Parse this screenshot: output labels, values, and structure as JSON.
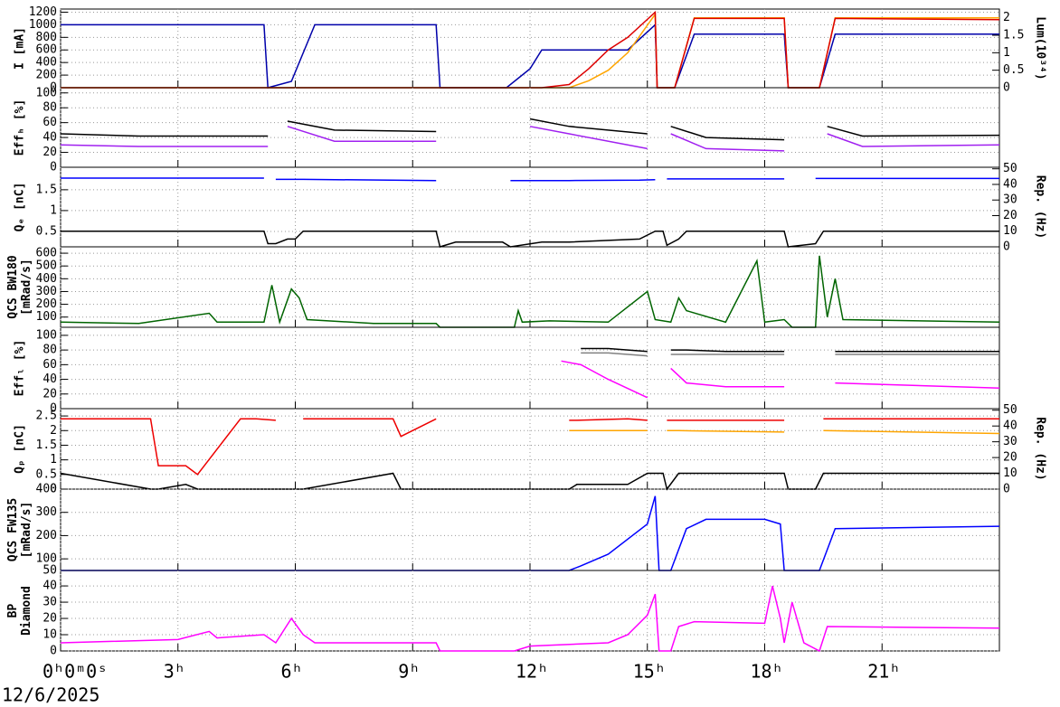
{
  "chart_data": [
    {
      "type": "line",
      "ylabel": [
        "I [mA]"
      ],
      "y2label": "Lum(10³⁴)",
      "xlim": [
        0,
        24
      ],
      "ylim": [
        0,
        1250
      ],
      "yticks": [
        0,
        200,
        400,
        600,
        800,
        1000,
        1200
      ],
      "y2lim": [
        0,
        2.25
      ],
      "y2ticks": [
        0,
        0.5,
        1,
        1.5,
        2
      ],
      "grid": true,
      "x": [
        0,
        5.2,
        5.3,
        5.9,
        6.5,
        9.6,
        9.7,
        11.4,
        12,
        12.3,
        13,
        13.5,
        14,
        14.5,
        15.2,
        15.25,
        15.7,
        16.2,
        18.5,
        18.6,
        19.4,
        19.8,
        24
      ],
      "series": [
        {
          "color": "#0000aa",
          "values": [
            1000,
            1000,
            0,
            100,
            1000,
            1000,
            0,
            0,
            300,
            600,
            600,
            600,
            600,
            600,
            1000,
            0,
            0,
            850,
            850,
            0,
            0,
            850,
            850
          ]
        },
        {
          "color": "#ffa500",
          "axis": "y2",
          "values": [
            0,
            0,
            0,
            0,
            0,
            0,
            0,
            0,
            0,
            0,
            0,
            0.2,
            0.5,
            1.0,
            2.1,
            0,
            0,
            2.0,
            2.0,
            0,
            0,
            2.0,
            2.0
          ]
        },
        {
          "color": "#dd0000",
          "values": [
            0,
            0,
            0,
            0,
            0,
            0,
            0,
            0,
            0,
            0,
            50,
            300,
            600,
            800,
            1200,
            0,
            0,
            1100,
            1100,
            0,
            0,
            1100,
            1080
          ]
        }
      ]
    },
    {
      "type": "line",
      "ylabel": [
        "Effₕ [%]"
      ],
      "xlim": [
        0,
        24
      ],
      "ylim": [
        0,
        107
      ],
      "yticks": [
        0,
        20,
        40,
        60,
        80,
        100
      ],
      "grid": true,
      "x": [
        0,
        2,
        5.3,
        5.5,
        5.8,
        7,
        9.6,
        9.8,
        11.6,
        12,
        13,
        15,
        15.4,
        15.6,
        16.5,
        18.5,
        18.7,
        19.3,
        19.6,
        20.5,
        24
      ],
      "series": [
        {
          "color": "#000000",
          "values": [
            45,
            42,
            42,
            null,
            62,
            50,
            48,
            null,
            null,
            65,
            55,
            45,
            null,
            55,
            40,
            37,
            null,
            null,
            55,
            42,
            43
          ]
        },
        {
          "color": "#a020f0",
          "values": [
            30,
            28,
            28,
            null,
            55,
            35,
            35,
            null,
            null,
            55,
            45,
            25,
            null,
            45,
            25,
            22,
            null,
            null,
            45,
            28,
            30
          ]
        }
      ]
    },
    {
      "type": "line",
      "ylabel": [
        "Qₑ [nC]"
      ],
      "y2label": "Rep. (Hz)",
      "xlim": [
        0,
        24
      ],
      "ylim": [
        0.13,
        2.04
      ],
      "yticks": [
        0.5,
        1,
        1.5
      ],
      "y2lim": [
        0,
        51
      ],
      "y2ticks": [
        0,
        10,
        20,
        30,
        40,
        50
      ],
      "grid": true,
      "x": [
        0,
        5.2,
        5.3,
        5.5,
        5.8,
        6.0,
        6.2,
        9.6,
        9.7,
        10.1,
        11.3,
        11.5,
        12.3,
        13,
        14.8,
        15.2,
        15.4,
        15.5,
        15.8,
        16,
        18.5,
        18.6,
        19.3,
        19.5,
        24
      ],
      "series": [
        {
          "color": "#0000ff",
          "values": [
            1.78,
            1.78,
            null,
            1.75,
            1.75,
            1.75,
            1.75,
            1.72,
            null,
            null,
            null,
            1.72,
            1.72,
            1.72,
            1.73,
            1.74,
            null,
            1.76,
            1.76,
            1.76,
            1.76,
            null,
            1.77,
            1.77,
            1.77
          ]
        },
        {
          "color": "#000000",
          "axis": "y2",
          "values": [
            10,
            10,
            2,
            2,
            5,
            5,
            10,
            10,
            0,
            3,
            3,
            0,
            3,
            3,
            5,
            10,
            10,
            1,
            5,
            10,
            10,
            0,
            2,
            10,
            10
          ]
        }
      ]
    },
    {
      "type": "line",
      "ylabel": [
        "QCS BW180",
        "[mRad/s]"
      ],
      "xlim": [
        0,
        24
      ],
      "ylim": [
        20,
        650
      ],
      "yticks": [
        100,
        200,
        300,
        400,
        500,
        600
      ],
      "grid": true,
      "x": [
        0,
        2,
        3.8,
        4,
        5.2,
        5.4,
        5.6,
        5.9,
        6.1,
        6.3,
        8,
        9.6,
        9.7,
        11.6,
        11.7,
        11.8,
        12.5,
        14,
        15,
        15.2,
        15.6,
        15.8,
        16,
        17,
        17.8,
        18,
        18.5,
        18.7,
        19.3,
        19.4,
        19.6,
        19.8,
        20,
        24
      ],
      "series": [
        {
          "color": "#006400",
          "values": [
            60,
            50,
            130,
            60,
            60,
            350,
            60,
            320,
            250,
            80,
            50,
            50,
            20,
            20,
            150,
            60,
            70,
            60,
            300,
            80,
            60,
            250,
            150,
            60,
            540,
            60,
            80,
            20,
            20,
            580,
            100,
            400,
            80,
            60
          ]
        }
      ]
    },
    {
      "type": "line",
      "ylabel": [
        "Effₗ [%]"
      ],
      "xlim": [
        0,
        24
      ],
      "ylim": [
        0,
        111
      ],
      "yticks": [
        0,
        20,
        40,
        60,
        80,
        100
      ],
      "grid": true,
      "x": [
        12.8,
        13.3,
        14,
        15,
        15.3,
        15.6,
        16,
        17,
        18.5,
        18.7,
        19.5,
        19.8,
        24
      ],
      "series": [
        {
          "color": "#000000",
          "values": [
            null,
            82,
            82,
            78,
            null,
            80,
            80,
            78,
            78,
            null,
            null,
            78,
            78
          ]
        },
        {
          "color": "#808080",
          "values": [
            null,
            76,
            76,
            72,
            null,
            74,
            74,
            74,
            74,
            null,
            null,
            74,
            74
          ]
        },
        {
          "color": "#ff00ff",
          "values": [
            65,
            60,
            40,
            15,
            null,
            55,
            35,
            30,
            30,
            null,
            null,
            35,
            28
          ]
        }
      ]
    },
    {
      "type": "line",
      "ylabel": [
        "Qₚ [nC]"
      ],
      "y2label": "Rep. (Hz)",
      "xlim": [
        0,
        24
      ],
      "ylim": [
        0,
        2.75
      ],
      "yticks": [
        0,
        0.5,
        1,
        1.5,
        2,
        2.5
      ],
      "y2lim": [
        0,
        51
      ],
      "y2ticks": [
        0,
        10,
        20,
        30,
        40,
        50
      ],
      "grid": true,
      "x": [
        0,
        2.3,
        2.5,
        3.2,
        3.5,
        4.6,
        5,
        5.5,
        5.8,
        6.2,
        8.5,
        8.7,
        9.6,
        9.7,
        12.8,
        13,
        13.2,
        14.5,
        15,
        15.4,
        15.5,
        15.8,
        18.5,
        18.6,
        19.3,
        19.5,
        24
      ],
      "series": [
        {
          "color": "#ee0000",
          "values": [
            2.4,
            2.4,
            0.8,
            0.8,
            0.5,
            2.4,
            2.4,
            2.35,
            null,
            2.4,
            2.4,
            1.8,
            2.4,
            null,
            null,
            2.35,
            2.35,
            2.4,
            2.35,
            null,
            2.35,
            2.35,
            2.35,
            null,
            null,
            2.4,
            2.4
          ]
        },
        {
          "color": "#ffa500",
          "values": [
            null,
            null,
            null,
            null,
            null,
            null,
            null,
            null,
            null,
            null,
            null,
            null,
            null,
            null,
            null,
            2.0,
            2.0,
            2.0,
            2.0,
            null,
            2.0,
            2.0,
            1.95,
            null,
            null,
            2.0,
            1.9
          ]
        },
        {
          "color": "#000000",
          "axis": "y2",
          "values": [
            10,
            0,
            0,
            3,
            0,
            0,
            0,
            0,
            0,
            0,
            10,
            0,
            0,
            0,
            0,
            0,
            3,
            3,
            10,
            10,
            0,
            10,
            10,
            0,
            0,
            10,
            10
          ]
        }
      ]
    },
    {
      "type": "line",
      "ylabel": [
        "QCS FW135",
        "[mRad/s]"
      ],
      "xlim": [
        0,
        24
      ],
      "ylim": [
        50,
        400
      ],
      "yticks": [
        50,
        100,
        200,
        300,
        400
      ],
      "grid": true,
      "x": [
        0,
        13,
        13.3,
        14,
        15,
        15.2,
        15.3,
        15.6,
        16,
        16.5,
        18,
        18.4,
        18.5,
        19.4,
        19.8,
        24
      ],
      "series": [
        {
          "color": "#0000ff",
          "values": [
            50,
            50,
            70,
            120,
            250,
            370,
            50,
            50,
            230,
            270,
            270,
            250,
            50,
            50,
            230,
            240
          ]
        }
      ]
    },
    {
      "type": "line",
      "ylabel": [
        "BP",
        "Diamond"
      ],
      "xlim": [
        0,
        24
      ],
      "ylim": [
        0,
        49.5
      ],
      "yticks": [
        0,
        10,
        20,
        30,
        40
      ],
      "grid": true,
      "xticks": [
        {
          "value": 0,
          "label": "0ʰ0ᵐ0ˢ"
        },
        {
          "value": 3,
          "label": "3ʰ"
        },
        {
          "value": 6,
          "label": "6ʰ"
        },
        {
          "value": 9,
          "label": "9ʰ"
        },
        {
          "value": 12,
          "label": "12ʰ"
        },
        {
          "value": 15,
          "label": "15ʰ"
        },
        {
          "value": 18,
          "label": "18ʰ"
        },
        {
          "value": 21,
          "label": "21ʰ"
        }
      ],
      "xlabel": "12/6/2025",
      "x": [
        0,
        3,
        3.8,
        4,
        5.2,
        5.5,
        5.9,
        6.2,
        6.5,
        9.6,
        9.7,
        11.6,
        12,
        14,
        14.5,
        15,
        15.2,
        15.3,
        15.6,
        15.8,
        16.2,
        18,
        18.2,
        18.4,
        18.5,
        18.7,
        19,
        19.4,
        19.6,
        24
      ],
      "series": [
        {
          "color": "#ff00ff",
          "values": [
            5,
            7,
            12,
            8,
            10,
            5,
            20,
            10,
            5,
            5,
            0,
            0,
            3,
            5,
            10,
            22,
            35,
            0,
            0,
            15,
            18,
            17,
            40,
            20,
            5,
            30,
            5,
            0,
            15,
            14
          ]
        }
      ]
    }
  ]
}
